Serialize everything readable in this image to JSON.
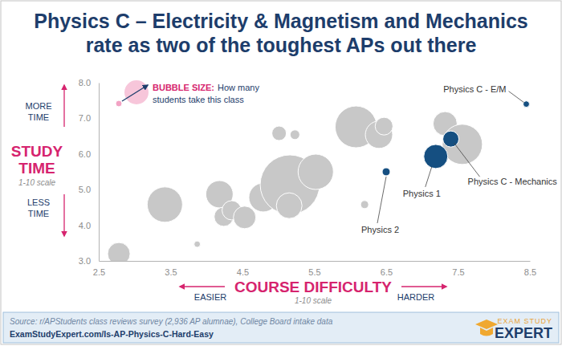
{
  "chart_data": {
    "type": "bubble",
    "title": [
      "Physics C – Electricity & Magnetism and Mechanics",
      "rate as two of the toughest APs out there"
    ],
    "x_label": "COURSE DIFFICULTY",
    "x_note": "1-10 scale",
    "x_ends": {
      "low": "EASIER",
      "high": "HARDER"
    },
    "y_label": [
      "STUDY",
      "TIME"
    ],
    "y_note": "1-10 scale",
    "y_ends": {
      "high": [
        "MORE",
        "TIME"
      ],
      "low": [
        "LESS",
        "TIME"
      ]
    },
    "size_legend": {
      "title": "BUBBLE SIZE:",
      "text": [
        "How many",
        "students take this class"
      ]
    },
    "x": [
      2.78,
      3.42,
      3.87,
      4.18,
      4.24,
      4.35,
      4.53,
      4.79,
      5.16,
      5.15,
      5.52,
      5.01,
      5.23,
      6.08,
      6.4,
      6.47,
      6.2,
      7.32,
      7.56,
      6.5,
      7.19,
      7.4,
      8.45
    ],
    "values": [
      3.2,
      4.58,
      3.47,
      4.87,
      4.24,
      4.42,
      4.22,
      4.78,
      5.14,
      4.55,
      5.5,
      6.58,
      6.54,
      6.76,
      6.54,
      6.78,
      4.58,
      6.85,
      6.27,
      5.5,
      5.93,
      6.42,
      7.4
    ],
    "sizes": [
      126,
      310,
      10,
      185,
      92,
      92,
      126,
      208,
      877,
      164,
      310,
      52,
      23,
      433,
      185,
      78,
      16,
      144,
      401,
      16,
      144,
      64,
      10
    ],
    "colors": [
      "#c8c8c8",
      "#c8c8c8",
      "#c8c8c8",
      "#c8c8c8",
      "#c8c8c8",
      "#c8c8c8",
      "#c8c8c8",
      "#c8c8c8",
      "#c8c8c8",
      "#c8c8c8",
      "#c8c8c8",
      "#c8c8c8",
      "#c8c8c8",
      "#c8c8c8",
      "#c8c8c8",
      "#c8c8c8",
      "#c8c8c8",
      "#c8c8c8",
      "#c8c8c8",
      "#154f81",
      "#154f81",
      "#154f81",
      "#154f81"
    ],
    "labels": [
      null,
      null,
      null,
      null,
      null,
      null,
      null,
      null,
      null,
      null,
      null,
      null,
      null,
      null,
      null,
      null,
      null,
      null,
      null,
      "Physics 2",
      "Physics 1",
      "Physics C - Mechanics",
      "Physics C - E/M"
    ],
    "xlim": [
      2.5,
      8.5
    ],
    "ylim": [
      3,
      8
    ],
    "xticks": [
      2.5,
      3.5,
      4.5,
      5.5,
      6.5,
      7.5,
      8.5
    ],
    "yticks": [
      {
        "value": 3,
        "label": "3.0"
      },
      {
        "value": 4,
        "label": "4.0"
      },
      {
        "value": 5,
        "label": "5.0"
      },
      {
        "value": 6,
        "label": "6.0"
      },
      {
        "value": 7,
        "label": "7.0"
      },
      {
        "value": 8,
        "label": "8.0"
      }
    ],
    "grid": false,
    "source": "Source: r/APStudents class reviews survey (2,936 AP alumnae), College Board intake data",
    "link": "ExamStudyExpert.com/Is-AP-Physics-C-Hard-Easy",
    "logo": [
      "EXAM STUDY",
      "EXPERT"
    ]
  }
}
